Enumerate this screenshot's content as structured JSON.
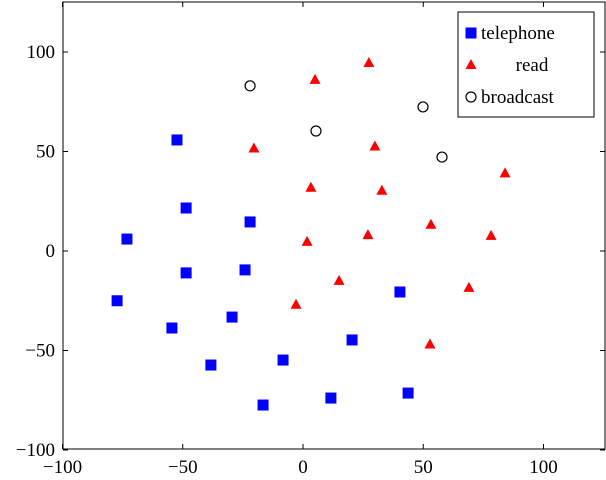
{
  "chart_data": {
    "type": "scatter",
    "title": "",
    "xlabel": "",
    "ylabel": "",
    "xlim": [
      -100,
      125
    ],
    "ylim": [
      -100,
      125
    ],
    "xticks": [
      -100,
      -50,
      0,
      50,
      100
    ],
    "yticks": [
      -100,
      -50,
      0,
      50,
      100
    ],
    "grid": false,
    "legend_position": "top-right",
    "series": [
      {
        "name": "telephone",
        "marker": "square",
        "color": "#0000ff",
        "points": [
          [
            -52.4,
            55.8
          ],
          [
            -48.6,
            21.6
          ],
          [
            -22,
            14.6
          ],
          [
            -73.2,
            6
          ],
          [
            -24.1,
            -9.5
          ],
          [
            -48.6,
            -11
          ],
          [
            -77.3,
            -25
          ],
          [
            40.3,
            -20.6
          ],
          [
            -54.5,
            -38.7
          ],
          [
            -29.5,
            -33.2
          ],
          [
            20.4,
            -44.7
          ],
          [
            -38.3,
            -57.3
          ],
          [
            -8.3,
            -54.8
          ],
          [
            -16.6,
            -77.4
          ],
          [
            11.6,
            -73.9
          ],
          [
            43.7,
            -71.4
          ]
        ]
      },
      {
        "name": "read",
        "marker": "triangle",
        "color": "#ff0000",
        "points": [
          [
            5,
            86
          ],
          [
            27.4,
            94.5
          ],
          [
            -20.4,
            51.5
          ],
          [
            29.9,
            52.5
          ],
          [
            3.3,
            31.8
          ],
          [
            32.8,
            30.3
          ],
          [
            84,
            39
          ],
          [
            1.7,
            4.6
          ],
          [
            27,
            8
          ],
          [
            53.2,
            13.2
          ],
          [
            78.2,
            7.6
          ],
          [
            15,
            -15
          ],
          [
            -2.9,
            -27
          ],
          [
            69,
            -18.5
          ],
          [
            52.8,
            -47
          ]
        ]
      },
      {
        "name": "broadcast",
        "marker": "circle-open",
        "color": "#000000",
        "points": [
          [
            -22,
            83
          ],
          [
            5.4,
            60.3
          ],
          [
            49.9,
            72.4
          ],
          [
            57.8,
            47.2
          ]
        ]
      }
    ]
  }
}
